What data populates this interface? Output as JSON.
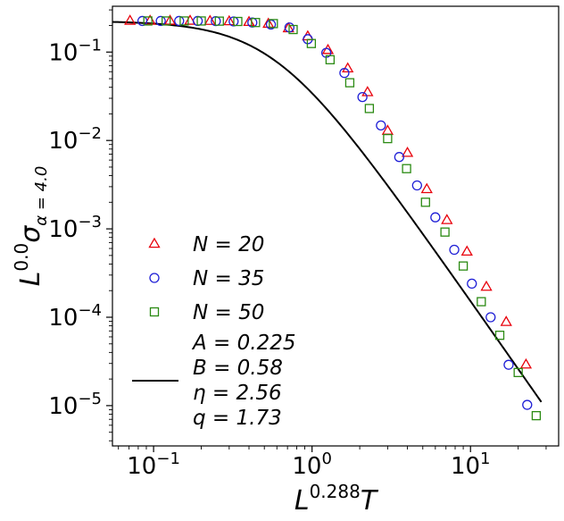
{
  "chart_data": {
    "type": "scatter",
    "x_scale": "log",
    "y_scale": "log",
    "xlim": [
      0.055,
      36
    ],
    "ylim": [
      3.5e-06,
      0.33
    ],
    "grid": false,
    "legend_position": "lower-left",
    "xlabel": {
      "base": "L",
      "exponent": "0.288",
      "suffix": "T"
    },
    "ylabel": {
      "base": "L",
      "exponent": "0.0",
      "sigma": "σ",
      "subscript": "α = 4.0"
    },
    "x_ticks": [
      {
        "value": 0.1,
        "base": "10",
        "exp": "−1"
      },
      {
        "value": 1,
        "base": "10",
        "exp": "0"
      },
      {
        "value": 10,
        "base": "10",
        "exp": "1"
      }
    ],
    "y_ticks": [
      {
        "value": 0.1,
        "base": "10",
        "exp": "−1"
      },
      {
        "value": 0.01,
        "base": "10",
        "exp": "−2"
      },
      {
        "value": 0.001,
        "base": "10",
        "exp": "−3"
      },
      {
        "value": 0.0001,
        "base": "10",
        "exp": "−4"
      },
      {
        "value": 1e-05,
        "base": "10",
        "exp": "−5"
      }
    ],
    "series": [
      {
        "name": "N = 20",
        "marker": "triangle",
        "color": "#e8000b",
        "points": [
          [
            0.071,
            0.225
          ],
          [
            0.095,
            0.225
          ],
          [
            0.127,
            0.225
          ],
          [
            0.17,
            0.225
          ],
          [
            0.227,
            0.224
          ],
          [
            0.3,
            0.222
          ],
          [
            0.4,
            0.218
          ],
          [
            0.53,
            0.208
          ],
          [
            0.71,
            0.185
          ],
          [
            0.94,
            0.15
          ],
          [
            1.26,
            0.105
          ],
          [
            1.68,
            0.065
          ],
          [
            2.24,
            0.035
          ],
          [
            3.0,
            0.0128
          ],
          [
            4.0,
            0.0072
          ],
          [
            5.3,
            0.0028
          ],
          [
            7.1,
            0.00125
          ],
          [
            9.5,
            0.00055
          ],
          [
            12.6,
            0.00022
          ],
          [
            16.8,
            8.8e-05
          ],
          [
            22.4,
            2.9e-05
          ]
        ]
      },
      {
        "name": "N = 35",
        "marker": "circle",
        "color": "#1f1fd6",
        "points": [
          [
            0.085,
            0.225
          ],
          [
            0.111,
            0.225
          ],
          [
            0.145,
            0.225
          ],
          [
            0.19,
            0.225
          ],
          [
            0.247,
            0.224
          ],
          [
            0.32,
            0.222
          ],
          [
            0.42,
            0.216
          ],
          [
            0.55,
            0.205
          ],
          [
            0.72,
            0.19
          ],
          [
            0.94,
            0.14
          ],
          [
            1.23,
            0.098
          ],
          [
            1.6,
            0.058
          ],
          [
            2.08,
            0.031
          ],
          [
            2.72,
            0.0148
          ],
          [
            3.55,
            0.0065
          ],
          [
            4.6,
            0.0031
          ],
          [
            6.0,
            0.00135
          ],
          [
            7.9,
            0.00058
          ],
          [
            10.2,
            0.00024
          ],
          [
            13.4,
            0.0001
          ],
          [
            17.4,
            2.9e-05
          ],
          [
            22.8,
            1.02e-05
          ]
        ]
      },
      {
        "name": "N = 50",
        "marker": "square",
        "color": "#2a8a12",
        "points": [
          [
            0.092,
            0.225
          ],
          [
            0.12,
            0.225
          ],
          [
            0.156,
            0.225
          ],
          [
            0.2,
            0.225
          ],
          [
            0.26,
            0.224
          ],
          [
            0.34,
            0.222
          ],
          [
            0.44,
            0.216
          ],
          [
            0.57,
            0.21
          ],
          [
            0.76,
            0.18
          ],
          [
            0.99,
            0.125
          ],
          [
            1.3,
            0.082
          ],
          [
            1.73,
            0.045
          ],
          [
            2.3,
            0.023
          ],
          [
            3.0,
            0.0105
          ],
          [
            3.95,
            0.0048
          ],
          [
            5.2,
            0.002
          ],
          [
            6.9,
            0.00092
          ],
          [
            9.0,
            0.00038
          ],
          [
            11.7,
            0.00015
          ],
          [
            15.3,
            6.25e-05
          ],
          [
            20.0,
            2.37e-05
          ],
          [
            26.0,
            7.7e-06
          ]
        ]
      }
    ],
    "fit_curve": {
      "color": "#000000",
      "x_range": [
        0.055,
        28
      ],
      "params": {
        "A": 0.225,
        "B": 0.58,
        "eta": 2.56,
        "q": 1.73
      },
      "legend_lines": [
        "A = 0.225",
        "B = 0.58",
        "η = 2.56",
        "q = 1.73"
      ]
    }
  }
}
